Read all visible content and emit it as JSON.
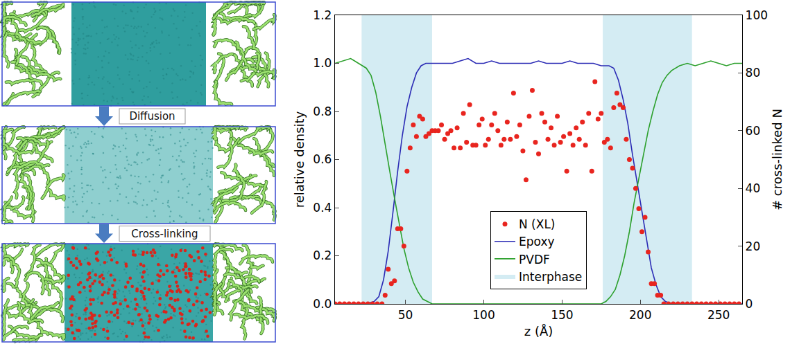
{
  "diagram": {
    "steps": [
      "Diffusion",
      "Cross-linking"
    ]
  },
  "chart_data": {
    "type": "line",
    "xlabel": "z (Å)",
    "ylabel": "relative density",
    "y2label": "# cross-linked N",
    "xlim": [
      5,
      265
    ],
    "xticks": [
      50,
      100,
      150,
      200,
      250
    ],
    "ylim": [
      0,
      1.2
    ],
    "yticks": [
      {
        "value": 0,
        "label": "0.0"
      },
      0.2,
      0.4,
      0.6,
      0.8,
      {
        "value": 1,
        "label": "1.0"
      },
      1.2
    ],
    "y2lim": [
      0,
      100
    ],
    "y2ticks": [
      0,
      20,
      40,
      60,
      80,
      100
    ],
    "grid": false,
    "legend": "lower center",
    "regions": {
      "name": "Interphase",
      "color": "#d4ecf3",
      "ranges": [
        [
          22,
          67
        ],
        [
          176,
          233
        ]
      ]
    },
    "series": [
      {
        "name": "N (XL)",
        "type": "scatter",
        "marker": "circle",
        "color": "#e8251f",
        "axis": "y2",
        "x": [
          5,
          8,
          11,
          14,
          17,
          20,
          23,
          26,
          29,
          32,
          35,
          37,
          39,
          41,
          43,
          45,
          47,
          49,
          51,
          53,
          55,
          57,
          59,
          61,
          63,
          65,
          67,
          69,
          71,
          73,
          75,
          77,
          79,
          81,
          83,
          85,
          87,
          89,
          91,
          93,
          95,
          97,
          99,
          101,
          103,
          105,
          107,
          109,
          111,
          113,
          115,
          117,
          119,
          121,
          123,
          125,
          127,
          129,
          131,
          133,
          135,
          137,
          139,
          141,
          143,
          145,
          147,
          149,
          151,
          153,
          155,
          157,
          159,
          161,
          163,
          165,
          167,
          169,
          171,
          173,
          175,
          177,
          179,
          181,
          183,
          185,
          187,
          189,
          191,
          193,
          195,
          197,
          199,
          201,
          203,
          205,
          207,
          209,
          211,
          213,
          215,
          218,
          221,
          224,
          227,
          230,
          233,
          236,
          239,
          242,
          245,
          248,
          251,
          254,
          257,
          260,
          263
        ],
        "values": [
          0,
          0,
          0,
          0,
          0,
          0,
          0,
          0,
          0,
          0,
          0,
          3,
          12,
          7,
          8,
          26,
          26,
          20,
          46,
          54,
          62,
          58,
          65,
          64,
          58,
          59,
          60,
          60,
          60,
          62,
          57,
          59,
          60,
          54,
          61,
          54,
          66,
          56,
          69,
          55,
          55,
          62,
          64,
          55,
          57,
          62,
          66,
          60,
          55,
          57,
          63,
          57,
          73,
          58,
          62,
          53,
          43,
          65,
          74,
          56,
          52,
          66,
          63,
          57,
          61,
          55,
          65,
          56,
          58,
          46,
          59,
          55,
          61,
          57,
          63,
          55,
          66,
          46,
          77,
          64,
          66,
          56,
          57,
          54,
          68,
          73,
          69,
          68,
          57,
          50,
          47,
          40,
          33,
          25,
          30,
          18,
          7,
          7,
          3,
          3,
          0,
          0,
          0,
          0,
          0,
          0,
          0,
          0,
          0,
          0,
          0,
          0,
          0,
          0,
          0,
          0,
          0
        ]
      },
      {
        "name": "Epoxy",
        "type": "line",
        "line_style": "solid",
        "color": "#2b2bb5",
        "x": [
          5,
          10,
          15,
          20,
          25,
          30,
          33,
          36,
          39,
          42,
          45,
          48,
          51,
          54,
          57,
          60,
          63,
          66,
          70,
          75,
          80,
          85,
          90,
          95,
          100,
          105,
          110,
          115,
          120,
          125,
          130,
          135,
          140,
          145,
          150,
          155,
          160,
          165,
          170,
          175,
          180,
          183,
          186,
          189,
          192,
          195,
          198,
          201,
          204,
          207,
          210,
          213,
          216,
          220,
          230,
          240,
          250,
          265
        ],
        "values": [
          0,
          0,
          0,
          0,
          0,
          0.01,
          0.03,
          0.1,
          0.22,
          0.38,
          0.55,
          0.7,
          0.82,
          0.9,
          0.96,
          0.99,
          1.0,
          1.0,
          1.0,
          1.0,
          1.0,
          1.01,
          1.02,
          1.0,
          1.0,
          1.01,
          1.0,
          1.0,
          1.0,
          1.0,
          1.0,
          1.01,
          1.0,
          1.0,
          1.0,
          1.01,
          1.0,
          1.0,
          1.0,
          0.99,
          0.99,
          0.98,
          0.93,
          0.85,
          0.75,
          0.62,
          0.5,
          0.38,
          0.26,
          0.15,
          0.08,
          0.03,
          0.01,
          0,
          0,
          0,
          0,
          0
        ]
      },
      {
        "name": "PVDF",
        "type": "line",
        "line_style": "solid",
        "color": "#2ca02c",
        "x": [
          5,
          10,
          15,
          20,
          25,
          28,
          31,
          34,
          37,
          40,
          43,
          46,
          49,
          52,
          55,
          58,
          61,
          64,
          67,
          70,
          80,
          90,
          100,
          110,
          120,
          130,
          140,
          150,
          160,
          170,
          175,
          178,
          181,
          184,
          187,
          190,
          193,
          196,
          199,
          202,
          205,
          208,
          211,
          214,
          217,
          220,
          225,
          230,
          235,
          240,
          245,
          250,
          255,
          260,
          265
        ],
        "values": [
          1.0,
          1.01,
          1.02,
          1.0,
          0.98,
          0.95,
          0.88,
          0.78,
          0.66,
          0.55,
          0.44,
          0.33,
          0.23,
          0.15,
          0.09,
          0.05,
          0.02,
          0.01,
          0,
          0,
          0,
          0,
          0,
          0,
          0,
          0,
          0,
          0,
          0,
          0,
          0,
          0.01,
          0.03,
          0.06,
          0.12,
          0.2,
          0.3,
          0.42,
          0.52,
          0.62,
          0.72,
          0.8,
          0.87,
          0.92,
          0.95,
          0.97,
          0.99,
          1.0,
          0.99,
          1.0,
          1.01,
          1.0,
          0.99,
          1.0,
          1.0
        ]
      }
    ]
  }
}
